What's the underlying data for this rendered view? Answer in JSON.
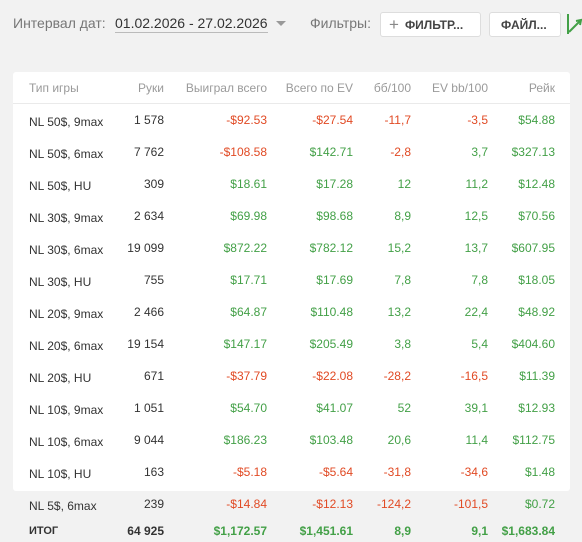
{
  "toolbar": {
    "date_label": "Интервал дат:",
    "date_range": "01.02.2026 - 27.02.2026",
    "filters_label": "Фильтры:",
    "filter_button": "ФИЛЬТР...",
    "file_button": "ФАЙЛ..."
  },
  "table": {
    "headers": [
      "Тип игры",
      "Руки",
      "Выиграл всего",
      "Всего по EV",
      "бб/100",
      "EV bb/100",
      "Рейк"
    ],
    "rows": [
      {
        "game": "NL 50$, 9max",
        "hands": "1 578",
        "won": "-$92.53",
        "ev": "-$27.54",
        "bb100": "-11,7",
        "evbb100": "-3,5",
        "rake": "$54.88",
        "c": [
          "neg",
          "neg",
          "neg",
          "neg",
          "pos"
        ]
      },
      {
        "game": "NL 50$, 6max",
        "hands": "7 762",
        "won": "-$108.58",
        "ev": "$142.71",
        "bb100": "-2,8",
        "evbb100": "3,7",
        "rake": "$327.13",
        "c": [
          "neg",
          "pos",
          "neg",
          "pos",
          "pos"
        ]
      },
      {
        "game": "NL 50$, HU",
        "hands": "309",
        "won": "$18.61",
        "ev": "$17.28",
        "bb100": "12",
        "evbb100": "11,2",
        "rake": "$12.48",
        "c": [
          "pos",
          "pos",
          "pos",
          "pos",
          "pos"
        ]
      },
      {
        "game": "NL 30$, 9max",
        "hands": "2 634",
        "won": "$69.98",
        "ev": "$98.68",
        "bb100": "8,9",
        "evbb100": "12,5",
        "rake": "$70.56",
        "c": [
          "pos",
          "pos",
          "pos",
          "pos",
          "pos"
        ]
      },
      {
        "game": "NL 30$, 6max",
        "hands": "19 099",
        "won": "$872.22",
        "ev": "$782.12",
        "bb100": "15,2",
        "evbb100": "13,7",
        "rake": "$607.95",
        "c": [
          "pos",
          "pos",
          "pos",
          "pos",
          "pos"
        ]
      },
      {
        "game": "NL 30$, HU",
        "hands": "755",
        "won": "$17.71",
        "ev": "$17.69",
        "bb100": "7,8",
        "evbb100": "7,8",
        "rake": "$18.05",
        "c": [
          "pos",
          "pos",
          "pos",
          "pos",
          "pos"
        ]
      },
      {
        "game": "NL 20$, 9max",
        "hands": "2 466",
        "won": "$64.87",
        "ev": "$110.48",
        "bb100": "13,2",
        "evbb100": "22,4",
        "rake": "$48.92",
        "c": [
          "pos",
          "pos",
          "pos",
          "pos",
          "pos"
        ]
      },
      {
        "game": "NL 20$, 6max",
        "hands": "19 154",
        "won": "$147.17",
        "ev": "$205.49",
        "bb100": "3,8",
        "evbb100": "5,4",
        "rake": "$404.60",
        "c": [
          "pos",
          "pos",
          "pos",
          "pos",
          "pos"
        ]
      },
      {
        "game": "NL 20$, HU",
        "hands": "671",
        "won": "-$37.79",
        "ev": "-$22.08",
        "bb100": "-28,2",
        "evbb100": "-16,5",
        "rake": "$11.39",
        "c": [
          "neg",
          "neg",
          "neg",
          "neg",
          "pos"
        ]
      },
      {
        "game": "NL 10$, 9max",
        "hands": "1 051",
        "won": "$54.70",
        "ev": "$41.07",
        "bb100": "52",
        "evbb100": "39,1",
        "rake": "$12.93",
        "c": [
          "pos",
          "pos",
          "pos",
          "pos",
          "pos"
        ]
      },
      {
        "game": "NL 10$, 6max",
        "hands": "9 044",
        "won": "$186.23",
        "ev": "$103.48",
        "bb100": "20,6",
        "evbb100": "11,4",
        "rake": "$112.75",
        "c": [
          "pos",
          "pos",
          "pos",
          "pos",
          "pos"
        ]
      },
      {
        "game": "NL 10$, HU",
        "hands": "163",
        "won": "-$5.18",
        "ev": "-$5.64",
        "bb100": "-31,8",
        "evbb100": "-34,6",
        "rake": "$1.48",
        "c": [
          "neg",
          "neg",
          "neg",
          "neg",
          "pos"
        ]
      },
      {
        "game": "NL 5$, 6max",
        "hands": "239",
        "won": "-$14.84",
        "ev": "-$12.13",
        "bb100": "-124,2",
        "evbb100": "-101,5",
        "rake": "$0.72",
        "c": [
          "neg",
          "neg",
          "neg",
          "neg",
          "pos"
        ]
      }
    ],
    "total": {
      "game": "ИТОГ",
      "hands": "64 925",
      "won": "$1,172.57",
      "ev": "$1,451.61",
      "bb100": "8,9",
      "evbb100": "9,1",
      "rake": "$1,683.84"
    }
  },
  "colors": {
    "positive": "#43a047",
    "negative": "#e14a24",
    "background": "#f2f2f2",
    "card": "#ffffff"
  },
  "icons": {
    "filter_button_icon": "plus-icon",
    "corner_icon": "chart-arrow-icon"
  }
}
